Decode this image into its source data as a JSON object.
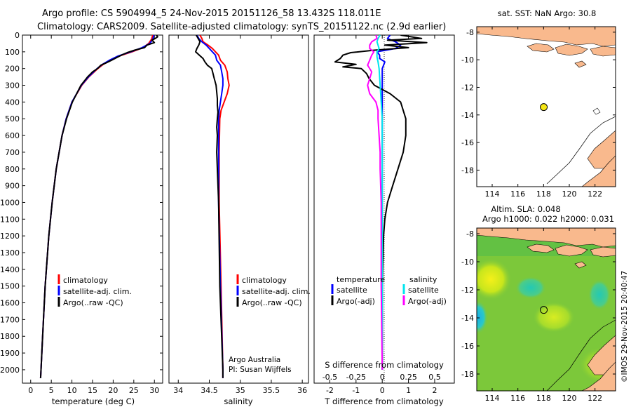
{
  "header": {
    "line1": "Argo profile: CS 5904994_5 24-Nov-2015 20151126_58 13.432S 118.011E",
    "line2": "Climatology: CARS2009. Satellite-adjusted climatology: synTS_20151122.nc (2.9d earlier)"
  },
  "colors": {
    "climatology": "#ff0000",
    "satellite": "#0000ff",
    "argo": "#000000",
    "sal_satellite": "#00e5ee",
    "sal_argo": "#ff00ff",
    "land": "#f9b98d",
    "marker": "#f5e616"
  },
  "panels": {
    "temperature": {
      "xlabel": "temperature (deg C)",
      "legend": [
        "climatology",
        "satellite-adj. clim.",
        "Argo(..raw -QC)"
      ]
    },
    "salinity": {
      "xlabel": "salinity",
      "legend": [
        "climatology",
        "satellite-adj. clim.",
        "Argo(..raw -QC)"
      ],
      "credit1": "Argo Australia",
      "credit2": "PI: Susan Wijffels"
    },
    "difference": {
      "s_title": "S difference from climatology",
      "xlabel": "T difference from climatology",
      "legend_head_t": "temperature",
      "legend_head_s": "salinity",
      "legend_t": [
        "satellite",
        "Argo(-adj)"
      ],
      "legend_s": [
        "satellite",
        "Argo(-adj)"
      ]
    }
  },
  "maps": {
    "sst_title": "sat. SST: NaN Argo: 30.8",
    "sla_title1": "Altim. SLA: 0.048",
    "sla_title2": "Argo h1000: 0.022 h2000: 0.031",
    "xticks": [
      "114",
      "116",
      "118",
      "120",
      "122"
    ],
    "yticks": [
      "-8",
      "-10",
      "-12",
      "-14",
      "-16",
      "-18"
    ],
    "lon_range": [
      112.8,
      123.6
    ],
    "lat_range": [
      -19.2,
      -7.6
    ],
    "float_position": {
      "lon": 118.011,
      "lat": -13.432
    },
    "watermark": "©IMOS 29-Nov-2015 20:40:47"
  },
  "chart_data": [
    {
      "type": "line",
      "name": "temperature profile",
      "xlabel": "temperature (deg C)",
      "ylabel": "",
      "xlim": [
        -2,
        32
      ],
      "ylim": [
        2080,
        0
      ],
      "xticks": [
        "0",
        "5",
        "10",
        "15",
        "20",
        "25",
        "30"
      ],
      "xtick_values": [
        0,
        5,
        10,
        15,
        20,
        25,
        30
      ],
      "yticks": [
        "0",
        "100",
        "200",
        "300",
        "400",
        "500",
        "600",
        "700",
        "800",
        "900",
        "1000",
        "1100",
        "1200",
        "1300",
        "1400",
        "1500",
        "1600",
        "1700",
        "1800",
        "1900",
        "2000"
      ],
      "ytick_values": [
        0,
        100,
        200,
        300,
        400,
        500,
        600,
        700,
        800,
        900,
        1000,
        1100,
        1200,
        1300,
        1400,
        1500,
        1600,
        1700,
        1800,
        1900,
        2000
      ],
      "series": [
        {
          "name": "climatology",
          "color": "#ff0000",
          "y": [
            0,
            25,
            50,
            75,
            100,
            125,
            150,
            175,
            200,
            250,
            300,
            400,
            500,
            600,
            800,
            1000,
            1200,
            1500,
            1800,
            2000,
            2050
          ],
          "x": [
            29.6,
            29.3,
            28.6,
            27.2,
            24.6,
            21.5,
            19.4,
            17.6,
            16.3,
            14.1,
            12.4,
            10.0,
            8.6,
            7.6,
            6.2,
            5.2,
            4.4,
            3.5,
            2.9,
            2.5,
            2.4
          ]
        },
        {
          "name": "satellite-adj. clim.",
          "color": "#0000ff",
          "y": [
            0,
            25,
            50,
            75,
            100,
            125,
            150,
            175,
            200,
            250,
            300,
            400,
            500,
            600,
            800,
            1000,
            1200,
            1500,
            1800,
            2000,
            2050
          ],
          "x": [
            29.9,
            29.6,
            28.9,
            27.0,
            24.3,
            21.2,
            19.1,
            17.4,
            16.1,
            14.0,
            12.3,
            10.0,
            8.6,
            7.6,
            6.2,
            5.2,
            4.4,
            3.5,
            2.9,
            2.5,
            2.4
          ]
        },
        {
          "name": "Argo(..raw -QC)",
          "color": "#000000",
          "y": [
            0,
            10,
            20,
            30,
            45,
            60,
            75,
            90,
            105,
            120,
            135,
            150,
            165,
            180,
            200,
            220,
            250,
            300,
            400,
            500,
            600,
            800,
            1000,
            1200,
            1500,
            1800,
            2000,
            2050
          ],
          "x": [
            30.5,
            30.8,
            30.2,
            29.4,
            30.0,
            28.2,
            27.6,
            25.2,
            23.4,
            22.0,
            20.8,
            19.6,
            18.4,
            17.0,
            16.2,
            15.0,
            13.8,
            12.2,
            10.1,
            8.7,
            7.6,
            6.2,
            5.2,
            4.4,
            3.5,
            2.9,
            2.5,
            2.4
          ]
        }
      ]
    },
    {
      "type": "line",
      "name": "salinity profile",
      "xlabel": "salinity",
      "ylabel": "",
      "xlim": [
        33.85,
        36.1
      ],
      "ylim": [
        2080,
        0
      ],
      "xticks": [
        "34",
        "34.5",
        "35",
        "35.5",
        "36"
      ],
      "xtick_values": [
        34,
        34.5,
        35,
        35.5,
        36
      ],
      "series": [
        {
          "name": "climatology",
          "color": "#ff0000",
          "y": [
            0,
            20,
            40,
            60,
            80,
            100,
            120,
            150,
            180,
            220,
            260,
            300,
            350,
            400,
            450,
            500,
            700,
            1000,
            1500,
            2000,
            2050
          ],
          "x": [
            34.35,
            34.38,
            34.4,
            34.48,
            34.55,
            34.6,
            34.65,
            34.68,
            34.75,
            34.79,
            34.8,
            34.82,
            34.79,
            34.74,
            34.69,
            34.67,
            34.66,
            34.66,
            34.69,
            34.72,
            34.72
          ]
        },
        {
          "name": "satellite-adj. clim.",
          "color": "#0000ff",
          "y": [
            0,
            20,
            40,
            60,
            80,
            100,
            120,
            150,
            180,
            220,
            260,
            300,
            350,
            400,
            450,
            500,
            700,
            1000,
            1500,
            2000,
            2050
          ],
          "x": [
            34.3,
            34.33,
            34.38,
            34.45,
            34.5,
            34.55,
            34.6,
            34.62,
            34.68,
            34.7,
            34.72,
            34.72,
            34.7,
            34.68,
            34.66,
            34.65,
            34.65,
            34.65,
            34.68,
            34.72,
            34.72
          ]
        },
        {
          "name": "Argo(..raw -QC)",
          "color": "#000000",
          "y": [
            0,
            20,
            40,
            60,
            80,
            100,
            120,
            140,
            160,
            180,
            200,
            230,
            260,
            300,
            340,
            380,
            420,
            460,
            500,
            550,
            600,
            700,
            800,
            900,
            1000,
            1500,
            2000,
            2050
          ],
          "x": [
            34.29,
            34.32,
            34.35,
            34.33,
            34.3,
            34.28,
            34.34,
            34.4,
            34.43,
            34.47,
            34.54,
            34.56,
            34.58,
            34.61,
            34.62,
            34.63,
            34.63,
            34.64,
            34.63,
            34.62,
            34.63,
            34.62,
            34.63,
            34.64,
            34.65,
            34.67,
            34.72,
            34.72
          ]
        }
      ]
    },
    {
      "type": "line",
      "name": "difference from climatology",
      "xlabel": "T difference from climatology",
      "x2label": "S difference from climatology",
      "xlim": [
        -2.6,
        2.75
      ],
      "ylim": [
        2080,
        0
      ],
      "xticks": [
        "-2",
        "-1",
        "0",
        "1",
        "2"
      ],
      "xtick_values": [
        -2,
        -1,
        0,
        1,
        2
      ],
      "x2ticks": [
        "-0.5",
        "-0.25",
        "0",
        "0.25",
        "0.5"
      ],
      "x2tick_values": [
        -0.5,
        -0.25,
        0,
        0.25,
        0.5
      ],
      "s_scale_factor": 4,
      "series": [
        {
          "name": "temperature satellite",
          "color": "#0000ff",
          "quantity": "T",
          "y": [
            0,
            20,
            40,
            60,
            80,
            100,
            120,
            140,
            160,
            200,
            300,
            500,
            800,
            1000,
            1500,
            2000
          ],
          "x": [
            0.3,
            0.2,
            0.5,
            0.7,
            0.5,
            -0.2,
            -0.1,
            -0.1,
            0.1,
            0.0,
            0.0,
            0.0,
            0.0,
            0.0,
            0.0,
            0.0
          ]
        },
        {
          "name": "temperature Argo(-adj)",
          "color": "#000000",
          "quantity": "T",
          "y": [
            0,
            20,
            30,
            45,
            60,
            75,
            90,
            105,
            120,
            140,
            160,
            175,
            190,
            200,
            230,
            260,
            300,
            350,
            400,
            450,
            500,
            600,
            700,
            800,
            900,
            1000,
            1100,
            1200,
            1500,
            2000
          ],
          "x": [
            0.7,
            1.5,
            0.2,
            1.7,
            0.1,
            1.0,
            -0.3,
            -1.2,
            -1.5,
            -1.6,
            -1.8,
            -1.0,
            -1.5,
            -0.8,
            -0.6,
            -0.5,
            -0.3,
            0.3,
            0.7,
            0.8,
            0.9,
            0.9,
            0.8,
            0.6,
            0.4,
            0.2,
            0.1,
            0.05,
            0.0,
            0.0
          ]
        },
        {
          "name": "salinity satellite",
          "color": "#00e5ee",
          "quantity": "S",
          "y": [
            0,
            20,
            40,
            60,
            80,
            100,
            130,
            160,
            200,
            300,
            400,
            500,
            600,
            700,
            800,
            1000,
            1500,
            2000
          ],
          "x": [
            -0.02,
            -0.04,
            -0.05,
            -0.04,
            -0.03,
            -0.05,
            -0.05,
            -0.04,
            -0.03,
            -0.02,
            -0.01,
            0.0,
            0.0,
            0.0,
            0.0,
            0.0,
            0.0,
            0.0
          ]
        },
        {
          "name": "salinity Argo(-adj)",
          "color": "#ff00ff",
          "quantity": "S",
          "y": [
            0,
            20,
            40,
            60,
            80,
            100,
            120,
            150,
            180,
            220,
            260,
            300,
            350,
            400,
            450,
            500,
            600,
            700,
            800,
            1000,
            1500,
            2000
          ],
          "x": [
            -0.06,
            -0.05,
            -0.1,
            -0.12,
            -0.12,
            -0.08,
            -0.1,
            -0.12,
            -0.14,
            -0.1,
            -0.12,
            -0.14,
            -0.12,
            -0.06,
            -0.04,
            -0.04,
            -0.03,
            -0.02,
            -0.02,
            -0.01,
            -0.01,
            0.0
          ]
        }
      ]
    }
  ]
}
